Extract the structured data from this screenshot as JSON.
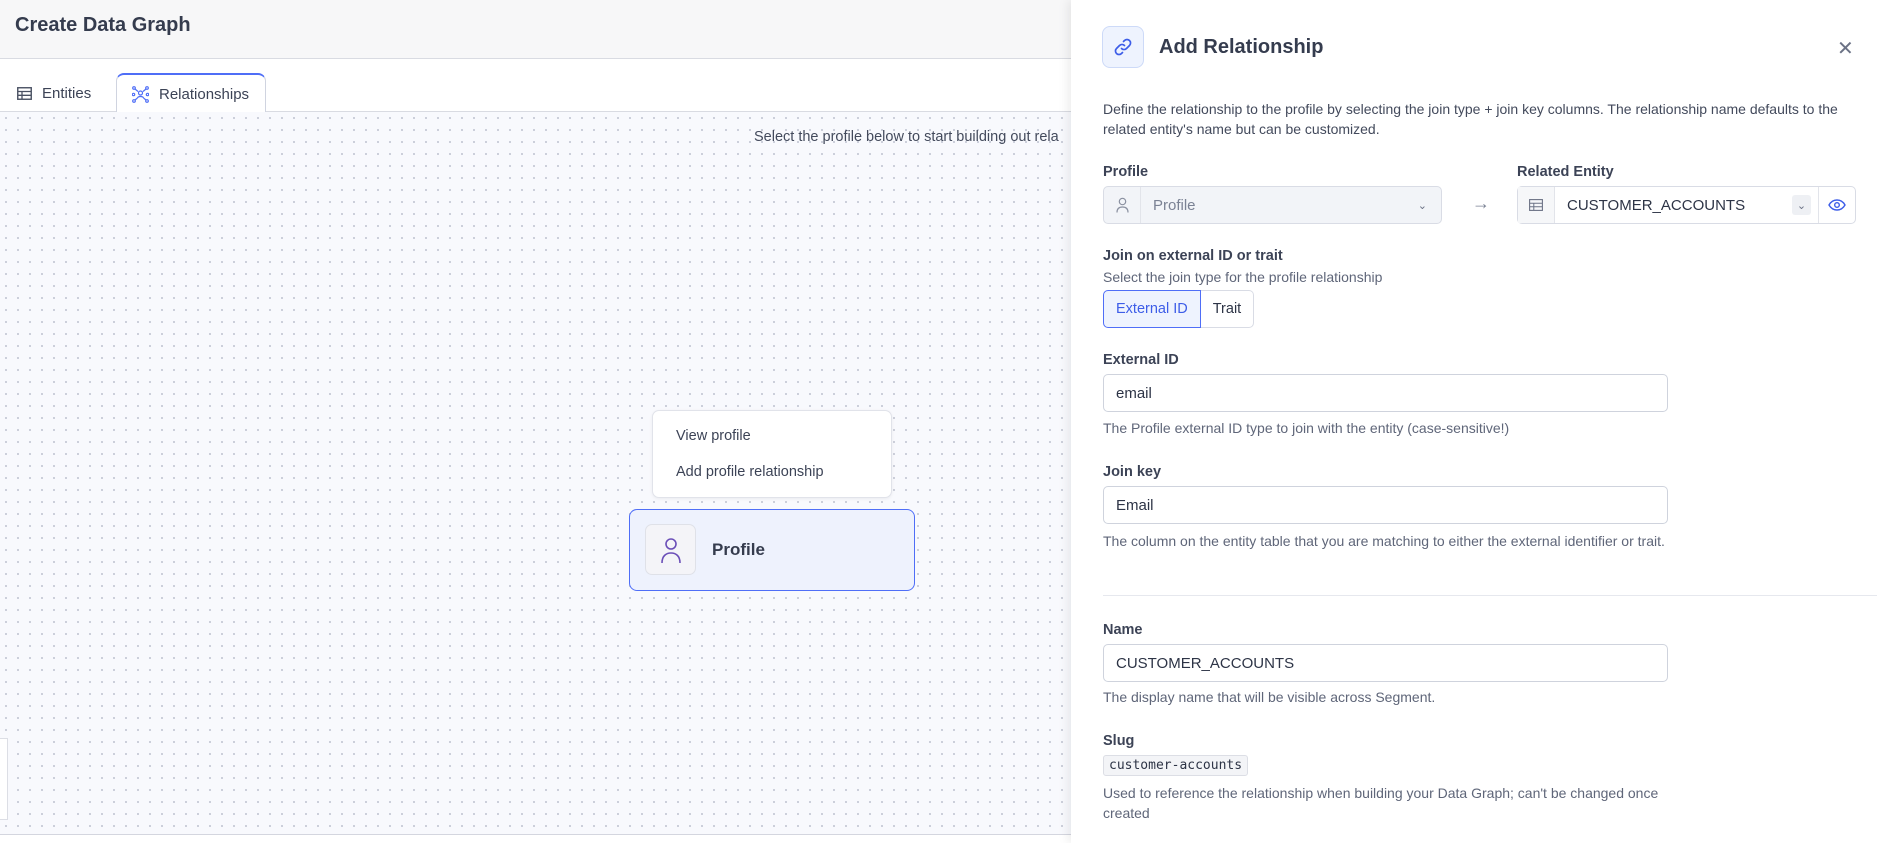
{
  "header": {
    "title": "Create Data Graph"
  },
  "tabs": [
    {
      "label": "Entities",
      "icon": "table-icon",
      "active": false
    },
    {
      "label": "Relationships",
      "icon": "network-icon",
      "active": true
    }
  ],
  "canvas": {
    "instruction": "Select the profile below to start building out rela",
    "context_menu": [
      "View profile",
      "Add profile relationship"
    ],
    "node": {
      "label": "Profile",
      "icon": "user-icon"
    }
  },
  "panel": {
    "title": "Add Relationship",
    "icon": "link-icon",
    "description": "Define the relationship to the profile by selecting the join type + join key columns. The relationship name defaults to the related entity's name but can be customized.",
    "profile": {
      "label": "Profile",
      "value": "Profile"
    },
    "related_entity": {
      "label": "Related Entity",
      "value": "CUSTOMER_ACCOUNTS"
    },
    "join": {
      "label": "Join on external ID or trait",
      "help": "Select the join type for the profile relationship",
      "options": [
        "External ID",
        "Trait"
      ],
      "selected": "External ID"
    },
    "external_id": {
      "label": "External ID",
      "value": "email",
      "help": "The Profile external ID type to join with the entity (case-sensitive!)"
    },
    "join_key": {
      "label": "Join key",
      "value": "Email",
      "help": "The column on the entity table that you are matching to either the external identifier or trait."
    },
    "name": {
      "label": "Name",
      "value": "CUSTOMER_ACCOUNTS",
      "help": "The display name that will be visible across Segment."
    },
    "slug": {
      "label": "Slug",
      "value": "customer-accounts",
      "help": "Used to reference the relationship when building your Data Graph; can't be changed once created"
    },
    "accent": "#4f6ef7"
  }
}
